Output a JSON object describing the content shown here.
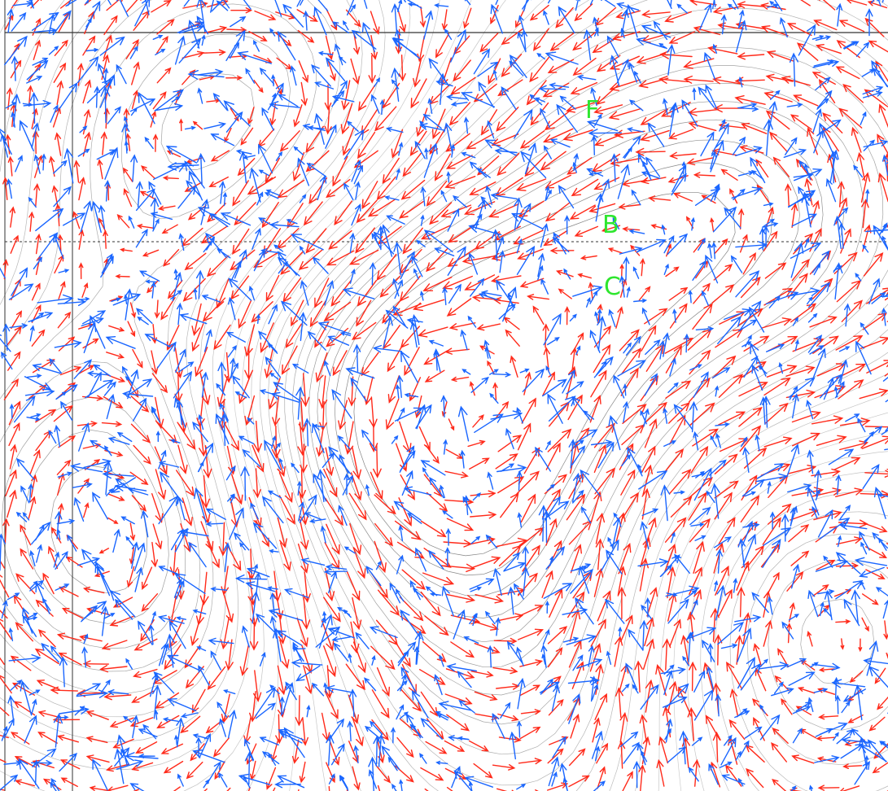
{
  "colors": {
    "background": "#ffffff",
    "arrow_red": "#ff2a1a",
    "arrow_blue": "#1a66ff",
    "contour": "#6f6f6f",
    "frame": "#333333",
    "label_green": "#2ee62e"
  },
  "field_labels": [
    {
      "text": "F"
    },
    {
      "text": "B"
    },
    {
      "text": "C"
    }
  ]
}
